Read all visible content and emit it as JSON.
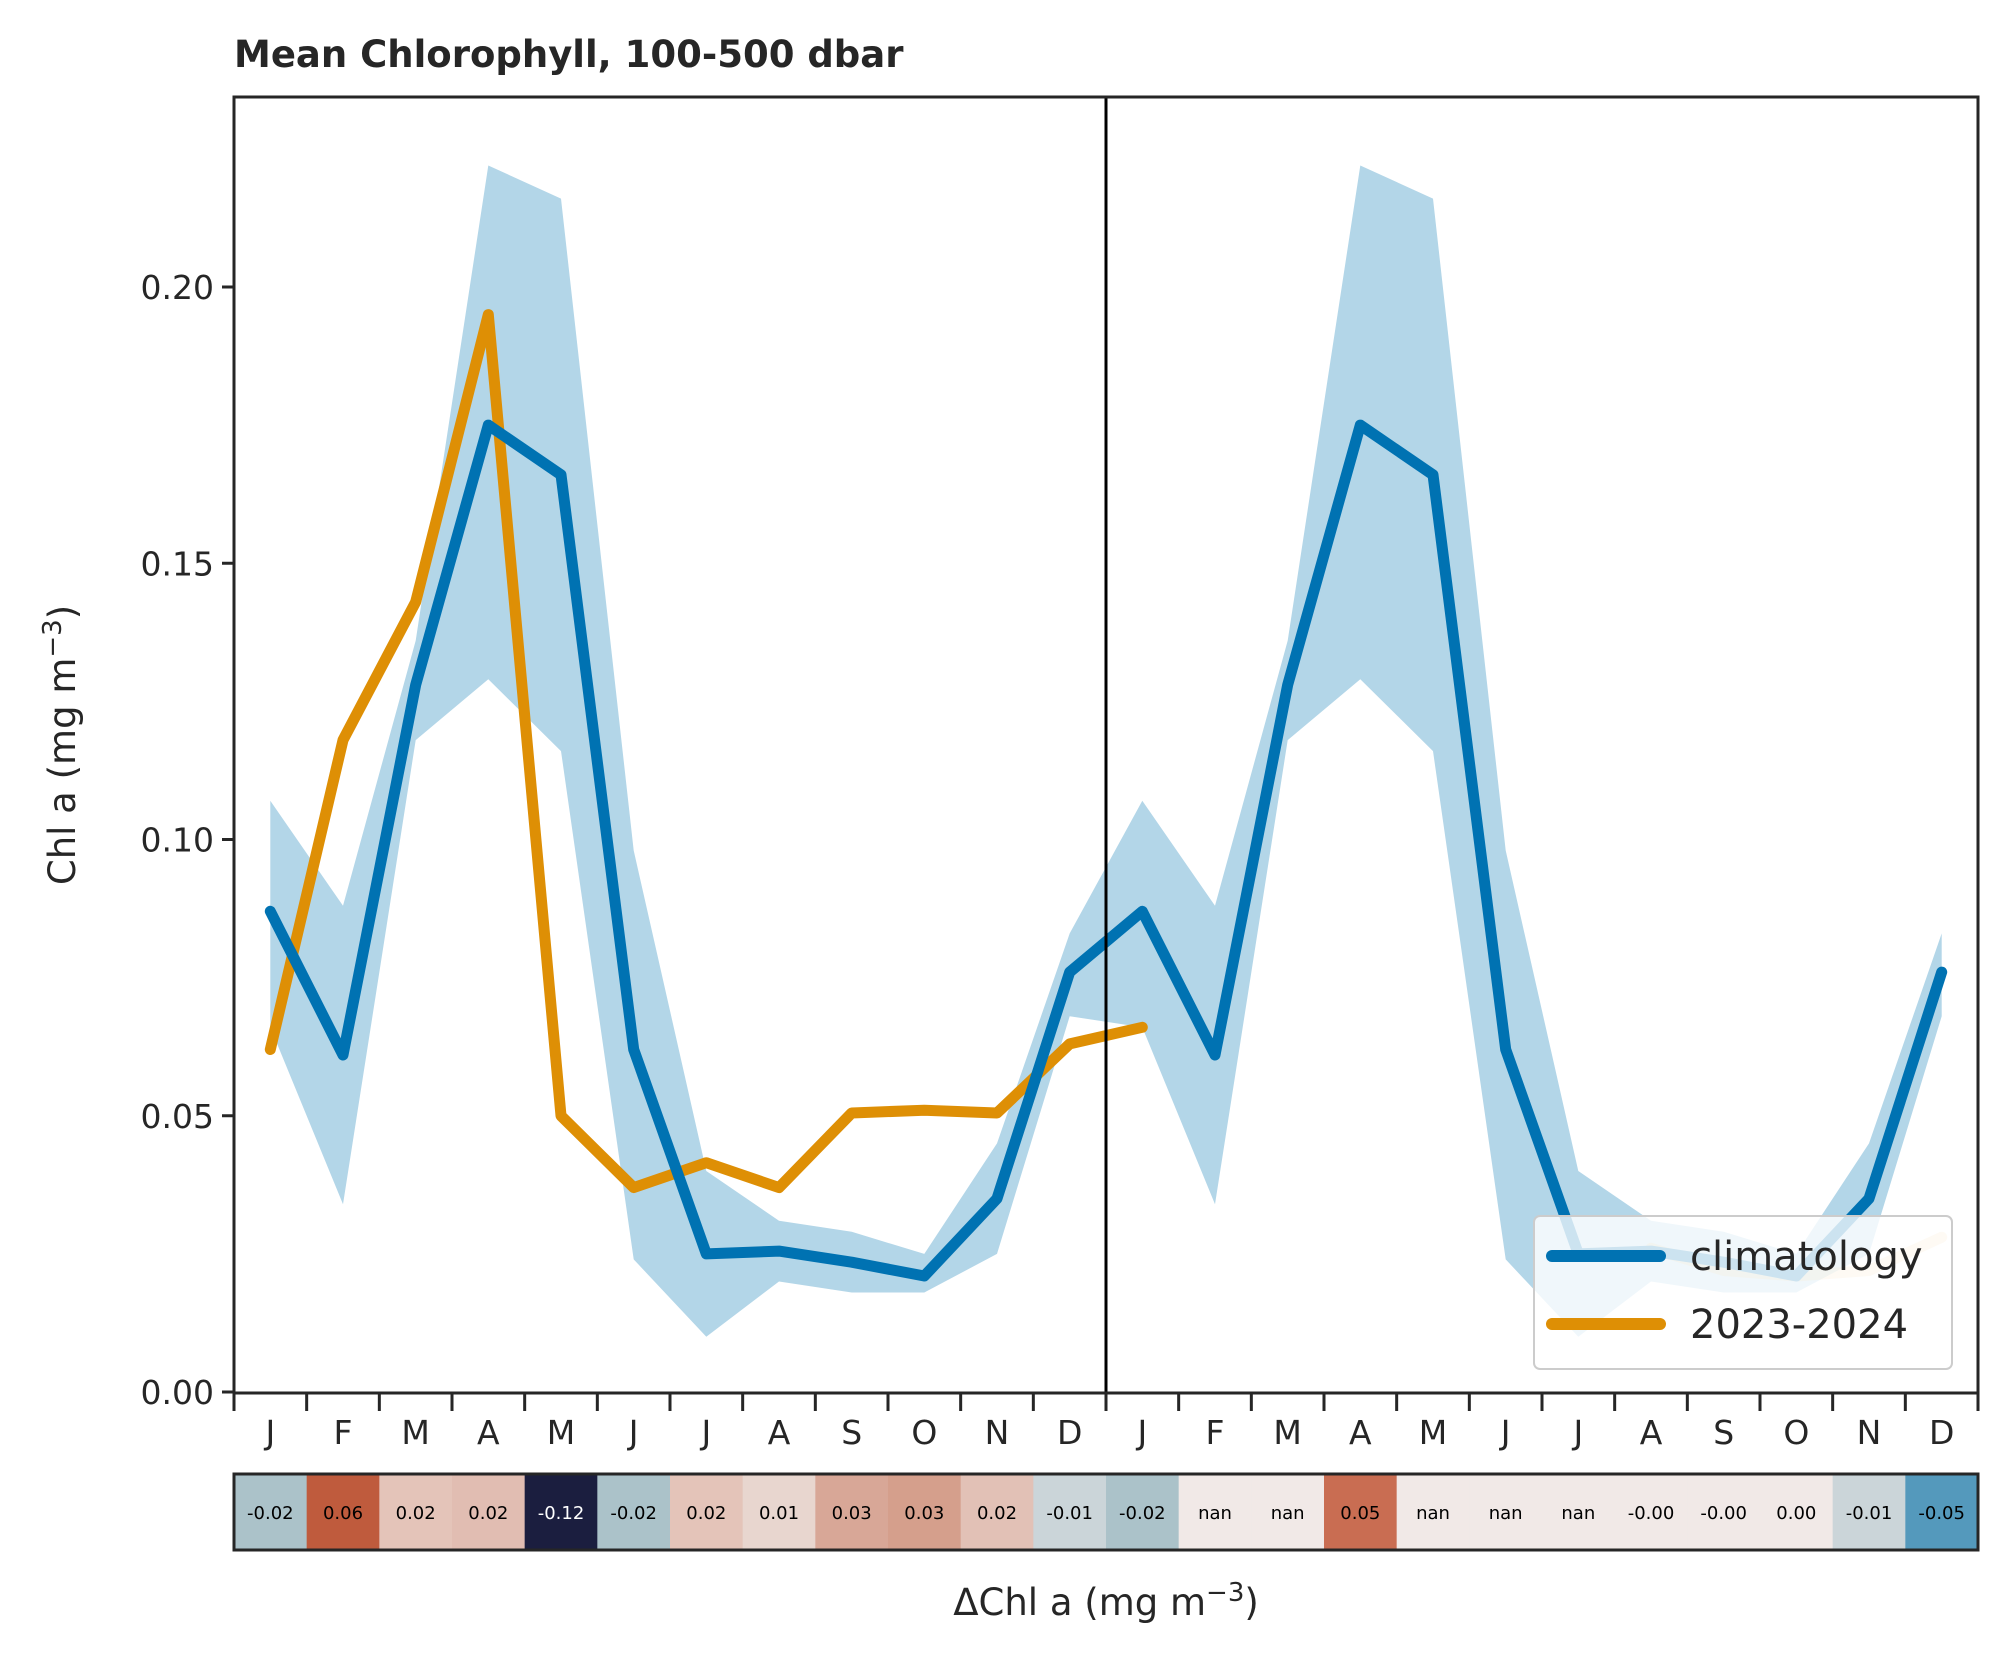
{
  "chart_data": {
    "type": "line",
    "title": "Mean Chlorophyll, 100-500 dbar",
    "ylabel_main": "Chl a (mg m",
    "ylabel_sup": "−3",
    "ylabel_end": ")",
    "ylim": [
      0,
      0.235
    ],
    "yticks": [
      "0.00",
      "0.05",
      "0.10",
      "0.15",
      "0.20"
    ],
    "ytick_values": [
      0,
      0.05,
      0.1,
      0.15,
      0.2
    ],
    "x_categories": [
      "J",
      "F",
      "M",
      "A",
      "M",
      "J",
      "J",
      "A",
      "S",
      "O",
      "N",
      "D",
      "J",
      "F",
      "M",
      "A",
      "M",
      "J",
      "J",
      "A",
      "S",
      "O",
      "N",
      "D"
    ],
    "series": [
      {
        "name": "climatology",
        "color": "#0072b2",
        "values": [
          0.087,
          0.061,
          0.128,
          0.175,
          0.166,
          0.062,
          0.025,
          0.0255,
          0.0235,
          0.021,
          0.035,
          0.076,
          0.087,
          0.061,
          0.128,
          0.175,
          0.166,
          0.062,
          0.025,
          0.0255,
          0.0235,
          0.021,
          0.035,
          0.076
        ],
        "band_upper": [
          0.107,
          0.088,
          0.136,
          0.222,
          0.216,
          0.098,
          0.04,
          0.031,
          0.029,
          0.025,
          0.045,
          0.083,
          0.107,
          0.088,
          0.136,
          0.222,
          0.216,
          0.098,
          0.04,
          0.031,
          0.029,
          0.025,
          0.045,
          0.083
        ],
        "band_lower": [
          0.066,
          0.034,
          0.118,
          0.129,
          0.116,
          0.024,
          0.01,
          0.02,
          0.018,
          0.018,
          0.025,
          0.068,
          0.066,
          0.034,
          0.118,
          0.129,
          0.116,
          0.024,
          0.01,
          0.02,
          0.018,
          0.018,
          0.025,
          0.068
        ],
        "band_color": "#b3d6e8"
      },
      {
        "name": "2023-2024",
        "color": "#de8f05",
        "values": [
          0.062,
          0.118,
          0.143,
          0.195,
          0.05,
          0.037,
          0.0415,
          0.037,
          0.0505,
          0.051,
          0.0505,
          0.063,
          0.066,
          null,
          null,
          null,
          null,
          null,
          null,
          0.026,
          0.022,
          0.021,
          0.022,
          0.028
        ],
        "faded_from_index": 19
      }
    ],
    "divider_after_index": 11.5,
    "legend_position": "lower right",
    "anomaly_strip": {
      "xlabel_main": "ΔChl a (mg m",
      "xlabel_sup": "−3",
      "xlabel_end": ")",
      "values": [
        "-0.02",
        "0.06",
        "0.02",
        "0.02",
        "-0.12",
        "-0.02",
        "0.02",
        "0.01",
        "0.03",
        "0.03",
        "0.02",
        "-0.01",
        "-0.02",
        "nan",
        "nan",
        "0.05",
        "nan",
        "nan",
        "nan",
        "-0.00",
        "-0.00",
        "0.00",
        "-0.01",
        "-0.05"
      ],
      "colors": [
        "#abc2c9",
        "#bf5b3d",
        "#e4c4b9",
        "#e1bdb2",
        "#1b1e3f",
        "#abc2c9",
        "#e4c4b9",
        "#e8d6cf",
        "#d8a797",
        "#d59f8c",
        "#e2c1b6",
        "#cbd5d9",
        "#abc2c9",
        "#f1e9e7",
        "#f1e9e7",
        "#c96d52",
        "#f1e9e7",
        "#f1e9e7",
        "#f1e9e7",
        "#f1e9e7",
        "#f1e9e7",
        "#f1e9e7",
        "#cbd5d9",
        "#5499bc"
      ],
      "text_colors": [
        "#000000",
        "#000000",
        "#000000",
        "#000000",
        "#ffffff",
        "#000000",
        "#000000",
        "#000000",
        "#000000",
        "#000000",
        "#000000",
        "#000000",
        "#000000",
        "#000000",
        "#000000",
        "#000000",
        "#000000",
        "#000000",
        "#000000",
        "#000000",
        "#000000",
        "#000000",
        "#000000",
        "#000000"
      ]
    }
  }
}
